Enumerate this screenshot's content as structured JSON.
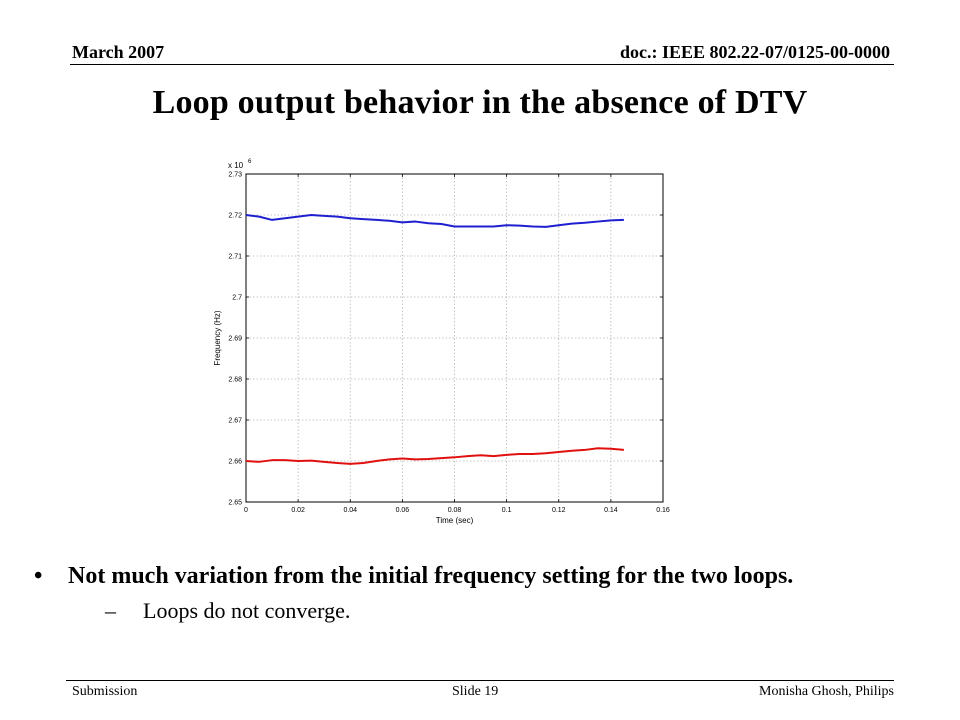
{
  "header": {
    "date": "March 2007",
    "doc": "doc.: IEEE 802.22-07/0125-00-0000"
  },
  "title": "Loop output behavior in the absence of DTV",
  "bullets": [
    {
      "text": "Not much variation from the initial frequency setting for the two loops.",
      "sub": [
        "Loops do not converge."
      ]
    }
  ],
  "footer": {
    "left": "Submission",
    "center": "Slide 19",
    "right": "Monisha Ghosh, Philips"
  },
  "chart_data": {
    "type": "line",
    "title": "",
    "xlabel": "Time (sec)",
    "ylabel": "Frequency (Hz)",
    "y_multiplier": "x 10",
    "y_multiplier_exp": "6",
    "xlim": [
      0,
      0.16
    ],
    "ylim": [
      2.65,
      2.73
    ],
    "xticks": [
      "0",
      "0.02",
      "0.04",
      "0.06",
      "0.08",
      "0.1",
      "0.12",
      "0.14",
      "0.16"
    ],
    "yticks": [
      "2.65",
      "2.66",
      "2.67",
      "2.68",
      "2.69",
      "2.7",
      "2.71",
      "2.72",
      "2.73"
    ],
    "grid": true,
    "series": [
      {
        "color": "#1f1fd0",
        "x": [
          0,
          0.005,
          0.01,
          0.015,
          0.02,
          0.025,
          0.03,
          0.035,
          0.04,
          0.045,
          0.05,
          0.055,
          0.06,
          0.065,
          0.07,
          0.075,
          0.08,
          0.085,
          0.09,
          0.095,
          0.1,
          0.105,
          0.11,
          0.115,
          0.12,
          0.125,
          0.13,
          0.135,
          0.14,
          0.145
        ],
        "values": [
          2.72,
          2.7196,
          2.7188,
          2.7192,
          2.7196,
          2.72,
          2.7198,
          2.7196,
          2.7192,
          2.719,
          2.7188,
          2.7186,
          2.7182,
          2.7184,
          2.718,
          2.7178,
          2.7172,
          2.7172,
          2.7172,
          2.7172,
          2.7175,
          2.7174,
          2.7172,
          2.7171,
          2.7175,
          2.7179,
          2.7181,
          2.7184,
          2.7187,
          2.7188
        ]
      },
      {
        "color": "#e01010",
        "x": [
          0,
          0.005,
          0.01,
          0.015,
          0.02,
          0.025,
          0.03,
          0.035,
          0.04,
          0.045,
          0.05,
          0.055,
          0.06,
          0.065,
          0.07,
          0.075,
          0.08,
          0.085,
          0.09,
          0.095,
          0.1,
          0.105,
          0.11,
          0.115,
          0.12,
          0.125,
          0.13,
          0.135,
          0.14,
          0.145
        ],
        "values": [
          2.66,
          2.6598,
          2.6602,
          2.6602,
          2.66,
          2.6601,
          2.6598,
          2.6595,
          2.6593,
          2.6595,
          2.66,
          2.6604,
          2.6606,
          2.6604,
          2.6605,
          2.6607,
          2.6609,
          2.6612,
          2.6614,
          2.6612,
          2.6615,
          2.6617,
          2.6617,
          2.6619,
          2.6622,
          2.6625,
          2.6627,
          2.6631,
          2.663,
          2.6627
        ]
      }
    ]
  }
}
